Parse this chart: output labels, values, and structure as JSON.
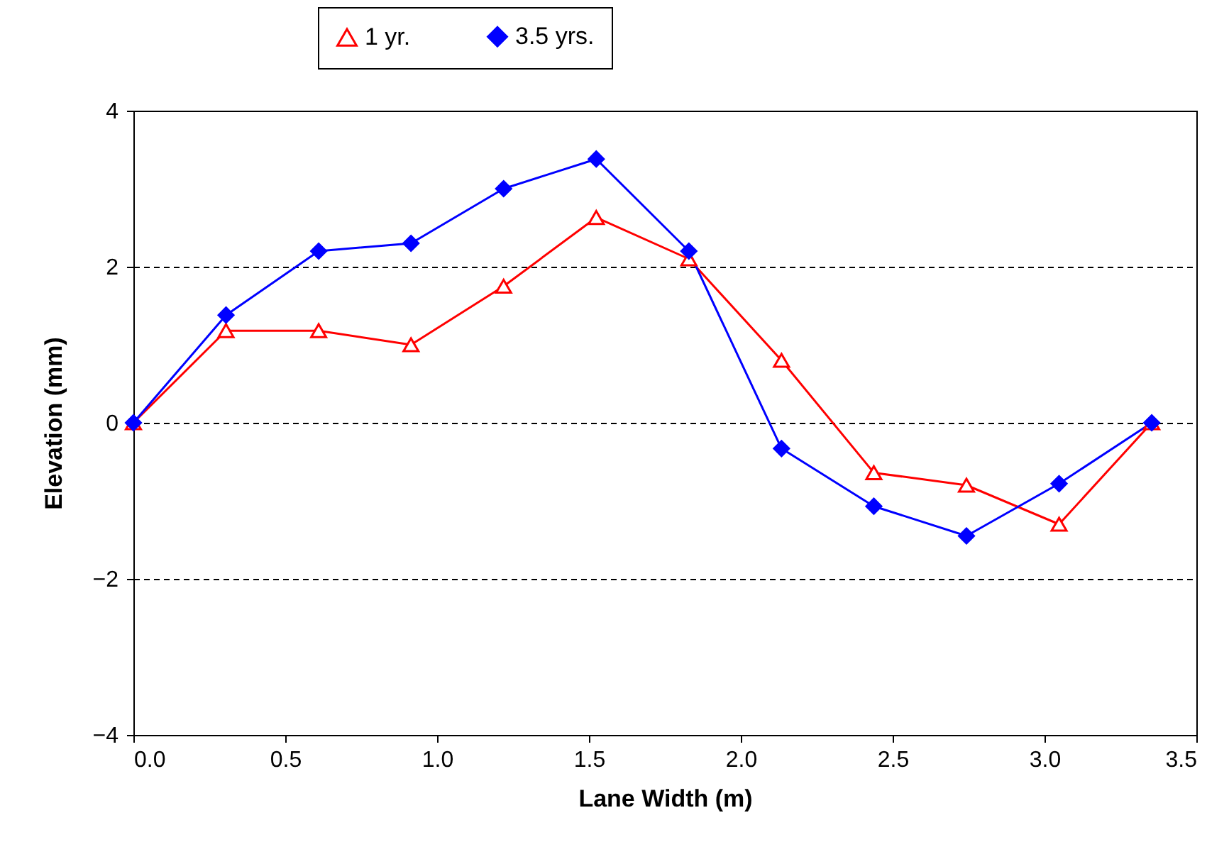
{
  "chart_data": {
    "type": "line",
    "xlabel": "Lane Width (m)",
    "ylabel": "Elevation (mm)",
    "x": [
      0,
      0.305,
      0.61,
      0.914,
      1.219,
      1.524,
      1.829,
      2.134,
      2.438,
      2.743,
      3.048,
      3.353
    ],
    "series": [
      {
        "name": "1 yr.",
        "color": "#ff0000",
        "marker": "triangle",
        "values": [
          0,
          1.18,
          1.18,
          1.0,
          1.75,
          2.63,
          2.1,
          0.8,
          -0.64,
          -0.8,
          -1.3,
          0
        ]
      },
      {
        "name": "3.5 yrs.",
        "color": "#0000ff",
        "marker": "diamond",
        "values": [
          0,
          1.38,
          2.2,
          2.3,
          3.0,
          3.38,
          2.2,
          -0.33,
          -1.07,
          -1.45,
          -0.78,
          0
        ]
      }
    ],
    "xlim": [
      0,
      3.5
    ],
    "xticks": [
      {
        "value": 0,
        "label": "0.0"
      },
      {
        "value": 0.5,
        "label": "0.5"
      },
      {
        "value": 1,
        "label": "1.0"
      },
      {
        "value": 1.5,
        "label": "1.5"
      },
      {
        "value": 2,
        "label": "2.0"
      },
      {
        "value": 2.5,
        "label": "2.5"
      },
      {
        "value": 3,
        "label": "3.0"
      },
      {
        "value": 3.5,
        "label": "3.5"
      }
    ],
    "ylim": [
      -4,
      4
    ],
    "yticks": [
      -4,
      -2,
      0,
      2,
      4
    ],
    "grid": "y",
    "legend": "top",
    "line_style": "solid"
  }
}
